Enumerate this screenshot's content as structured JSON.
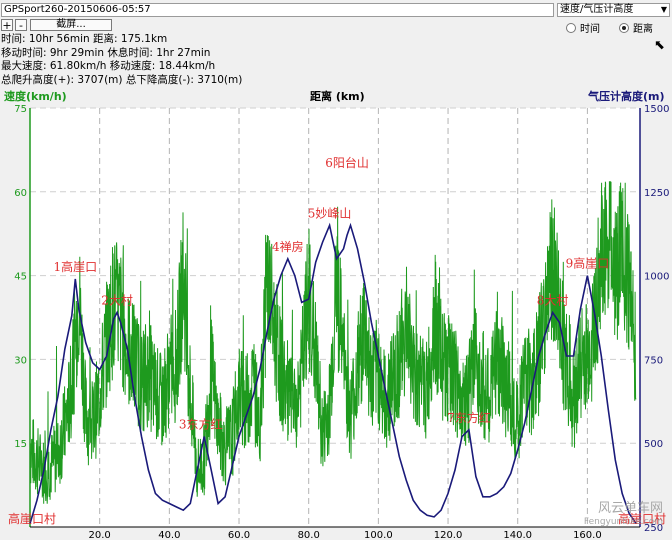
{
  "window": {
    "title": "GPSport260-20150606-05:57",
    "mode_select": "速度/气压计高度",
    "zoom_in": "+",
    "zoom_out": "-",
    "zoom_button": "截屏..."
  },
  "radios": [
    {
      "label": "时间",
      "selected": false
    },
    {
      "label": "距离",
      "selected": true
    }
  ],
  "stats": {
    "row1": "时间: 10hr 56min  距离: 175.1km",
    "row2": "移动时间: 9hr 29min  休息时间: 1hr 27min",
    "row3": "最大速度: 61.80km/h  移动速度: 18.44km/h",
    "row4": "总爬升高度(+): 3707(m)  总下降高度(-): 3710(m)"
  },
  "chart_data": {
    "type": "line",
    "xlabel": "距离 (km)",
    "ylabel_left": "速度(km/h)",
    "ylabel_right": "气压计高度(m)",
    "xlim": [
      0,
      175.1
    ],
    "ylim_left": [
      0,
      75
    ],
    "ylim_right": [
      250,
      1500
    ],
    "x_ticks": [
      "20.0",
      "40.0",
      "60.0",
      "80.0",
      "100.0",
      "120.0",
      "140.0",
      "160.0"
    ],
    "y_ticks_left": [
      "15",
      "30",
      "45",
      "60",
      "75"
    ],
    "y_ticks_right": [
      "250",
      "500",
      "750",
      "1000",
      "1250",
      "1500"
    ],
    "grid": true,
    "colors": {
      "speed": "#1e9a1e",
      "altitude": "#1a1a7a",
      "labels": "#e03030",
      "left_axis": "#1e9a1e",
      "right_axis": "#1a1a7a"
    },
    "series": [
      {
        "name": "速度(km/h)",
        "x": [
          0,
          2,
          4,
          6,
          8,
          10,
          12,
          14,
          16,
          18,
          20,
          22,
          24,
          26,
          28,
          30,
          32,
          34,
          36,
          38,
          40,
          42,
          44,
          46,
          48,
          50,
          52,
          54,
          56,
          58,
          60,
          62,
          64,
          66,
          68,
          70,
          72,
          74,
          76,
          78,
          80,
          82,
          84,
          86,
          88,
          90,
          92,
          94,
          96,
          98,
          100,
          102,
          104,
          106,
          108,
          110,
          112,
          114,
          116,
          118,
          120,
          122,
          124,
          126,
          128,
          130,
          132,
          134,
          136,
          138,
          140,
          142,
          144,
          146,
          148,
          150,
          152,
          154,
          156,
          158,
          160,
          162,
          164,
          166,
          168,
          170,
          172,
          174
        ],
        "values": [
          14,
          12,
          10,
          11,
          13,
          18,
          25,
          42,
          20,
          18,
          24,
          33,
          40,
          38,
          32,
          30,
          26,
          28,
          24,
          22,
          28,
          29,
          45,
          24,
          10,
          12,
          28,
          18,
          14,
          16,
          24,
          22,
          26,
          18,
          45,
          36,
          28,
          24,
          20,
          28,
          42,
          30,
          16,
          22,
          44,
          30,
          20,
          28,
          36,
          26,
          28,
          22,
          26,
          30,
          36,
          28,
          26,
          24,
          38,
          30,
          28,
          26,
          22,
          24,
          30,
          26,
          22,
          32,
          26,
          24,
          18,
          28,
          26,
          30,
          40,
          46,
          38,
          28,
          22,
          30,
          30,
          36,
          48,
          54,
          46,
          50,
          44,
          30
        ]
      },
      {
        "name": "气压计高度(m)",
        "x": [
          0,
          2,
          4,
          6,
          8,
          10,
          12,
          13,
          14,
          16,
          18,
          20,
          22,
          24,
          25,
          26,
          28,
          30,
          32,
          34,
          36,
          38,
          40,
          42,
          44,
          46,
          48,
          50,
          52,
          54,
          56,
          58,
          60,
          62,
          64,
          66,
          68,
          70,
          72,
          74,
          76,
          78,
          80,
          82,
          84,
          86,
          88,
          90,
          91,
          92,
          94,
          96,
          98,
          100,
          102,
          104,
          106,
          108,
          110,
          112,
          114,
          116,
          118,
          120,
          122,
          124,
          126,
          128,
          130,
          132,
          134,
          136,
          138,
          140,
          142,
          144,
          146,
          148,
          150,
          152,
          154,
          156,
          158,
          160,
          162,
          164,
          166,
          168,
          170,
          172,
          174
        ],
        "values": [
          260,
          330,
          420,
          540,
          640,
          780,
          880,
          990,
          900,
          800,
          740,
          720,
          760,
          870,
          890,
          860,
          780,
          640,
          520,
          420,
          350,
          330,
          320,
          310,
          300,
          320,
          420,
          520,
          420,
          320,
          340,
          430,
          520,
          580,
          640,
          720,
          830,
          930,
          1000,
          1050,
          1000,
          920,
          930,
          1040,
          1100,
          1150,
          1050,
          1080,
          1120,
          1150,
          1080,
          980,
          860,
          760,
          660,
          560,
          460,
          390,
          330,
          300,
          285,
          280,
          300,
          350,
          420,
          520,
          540,
          400,
          340,
          340,
          350,
          370,
          410,
          480,
          560,
          660,
          760,
          830,
          890,
          860,
          760,
          760,
          900,
          1000,
          890,
          760,
          600,
          450,
          350,
          290,
          260
        ]
      }
    ],
    "annotations": [
      {
        "text": "1高崖口",
        "x": 13,
        "y_alt": 990
      },
      {
        "text": "2大村",
        "x": 25,
        "y_alt": 890
      },
      {
        "text": "3东方红",
        "x": 49,
        "y_alt": 520
      },
      {
        "text": "4禅房",
        "x": 74,
        "y_alt": 1050
      },
      {
        "text": "5妙峰山",
        "x": 86,
        "y_alt": 1150
      },
      {
        "text": "6阳台山",
        "x": 91,
        "y_alt": 1300
      },
      {
        "text": "7东方红",
        "x": 126,
        "y_alt": 540
      },
      {
        "text": "8大村",
        "x": 150,
        "y_alt": 890
      },
      {
        "text": "9高崖口",
        "x": 160,
        "y_alt": 1000
      },
      {
        "text": "高崖口村",
        "x": 2,
        "y_alt": 260
      },
      {
        "text": "高崖口村",
        "x": 168,
        "y_alt": 260
      }
    ]
  },
  "watermark": {
    "line1": "风云单车网",
    "line2": "Fengyunbike.com"
  }
}
